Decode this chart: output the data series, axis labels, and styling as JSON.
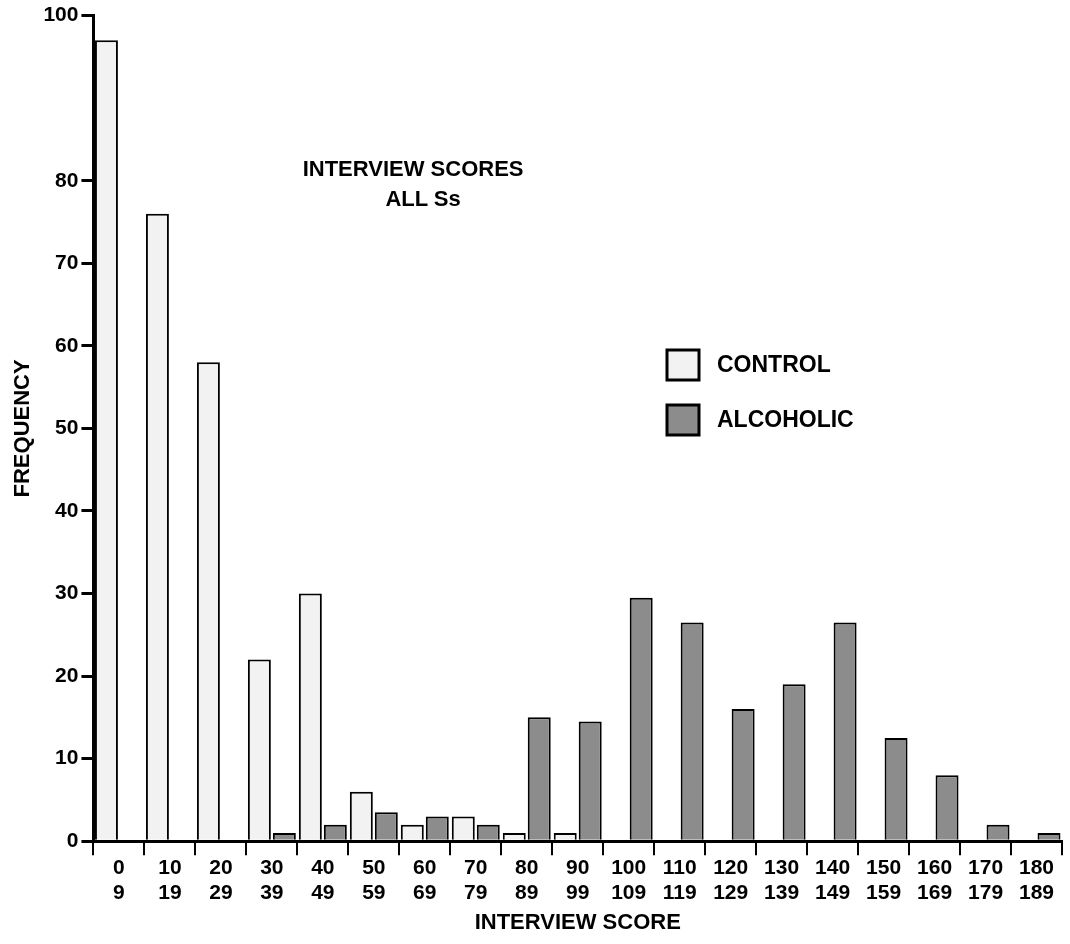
{
  "chart_data": {
    "type": "bar",
    "title": "INTERVIEW SCORES",
    "subtitle": "ALL Ss",
    "xlabel": "INTERVIEW SCORE",
    "ylabel": "FREQUENCY",
    "categories": [
      "0\n9",
      "10\n19",
      "20\n29",
      "30\n39",
      "40\n49",
      "50\n59",
      "60\n69",
      "70\n79",
      "80\n89",
      "90\n99",
      "100\n109",
      "110\n119",
      "120\n129",
      "130\n139",
      "140\n149",
      "150\n159",
      "160\n169",
      "170\n179",
      "180\n189"
    ],
    "series": [
      {
        "name": "CONTROL",
        "color": "#f2f2f2",
        "values": [
          97,
          76,
          58,
          22,
          30,
          6,
          2,
          3,
          1,
          1,
          null,
          null,
          null,
          null,
          null,
          null,
          null,
          null,
          null
        ]
      },
      {
        "name": "ALCOHOLIC",
        "color": "#8c8c8c",
        "values": [
          null,
          null,
          null,
          1,
          2,
          3.5,
          3,
          2,
          15,
          14.5,
          29.5,
          26.5,
          16,
          19,
          26.5,
          12.5,
          8,
          2,
          1
        ]
      }
    ],
    "ylim": [
      0,
      100
    ],
    "yticks": [
      0,
      10,
      20,
      30,
      40,
      50,
      60,
      70,
      80,
      100
    ],
    "grid": false,
    "legend": "right"
  }
}
